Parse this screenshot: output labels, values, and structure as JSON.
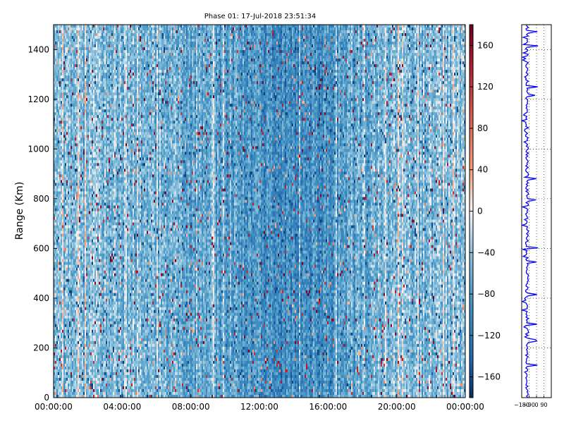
{
  "chart_data": [
    {
      "type": "heatmap",
      "title": "Phase 01: 17-Jul-2018 23:51:34",
      "xlabel": "",
      "ylabel": "Range (Km)",
      "x_ticks": [
        "00:00:00",
        "04:00:00",
        "08:00:00",
        "12:00:00",
        "16:00:00",
        "20:00:00",
        "00:00:00"
      ],
      "x_range": [
        "00:00:00",
        "24:00:00"
      ],
      "y_ticks": [
        0,
        200,
        400,
        600,
        800,
        1000,
        1200,
        1400
      ],
      "ylim": [
        0,
        1500
      ],
      "value_range": [
        -180,
        180
      ],
      "colormap": "RdBu_r",
      "grid": false,
      "colorbar": {
        "ticks": [
          160,
          120,
          80,
          40,
          0,
          -40,
          -80,
          -120,
          -160
        ],
        "range": [
          -180,
          180
        ]
      }
    },
    {
      "type": "line",
      "series_color": "#0000ff",
      "x_ticks": [
        "-180",
        "-90",
        "0",
        "90"
      ],
      "xlim": [
        -180,
        180
      ],
      "ylim": [
        0,
        1500
      ],
      "grid": true
    }
  ],
  "colors": {
    "line": "#0000ff",
    "axes": "#000000"
  }
}
